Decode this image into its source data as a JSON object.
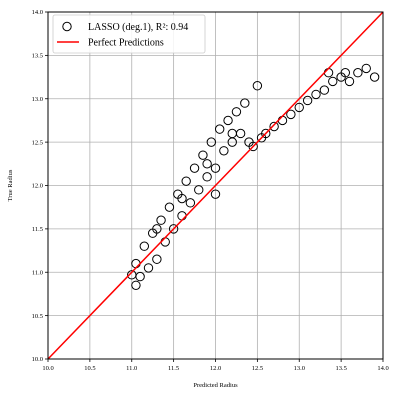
{
  "chart_data": {
    "type": "scatter",
    "xlabel": "Predicted Radius",
    "ylabel": "True Radius",
    "xlim": [
      10.0,
      14.0
    ],
    "ylim": [
      10.0,
      14.0
    ],
    "xticks": [
      "10.0",
      "10.5",
      "11.0",
      "11.5",
      "12.0",
      "12.5",
      "13.0",
      "13.5",
      "14.0"
    ],
    "yticks": [
      "10.0",
      "10.5",
      "11.0",
      "11.5",
      "12.0",
      "12.5",
      "13.0",
      "13.5",
      "14.0"
    ],
    "grid": true,
    "legend_position": "top-left",
    "series": [
      {
        "name": "LASSO (deg.1), R²: 0.94",
        "kind": "scatter",
        "marker": "open-circle",
        "color": "#000000",
        "points": [
          [
            11.0,
            10.97
          ],
          [
            11.05,
            10.85
          ],
          [
            11.1,
            10.95
          ],
          [
            11.2,
            11.05
          ],
          [
            11.15,
            11.3
          ],
          [
            11.25,
            11.45
          ],
          [
            11.3,
            11.15
          ],
          [
            11.35,
            11.6
          ],
          [
            11.4,
            11.35
          ],
          [
            11.45,
            11.75
          ],
          [
            11.5,
            11.5
          ],
          [
            11.55,
            11.9
          ],
          [
            11.6,
            11.65
          ],
          [
            11.65,
            12.05
          ],
          [
            11.7,
            11.8
          ],
          [
            11.75,
            12.2
          ],
          [
            11.8,
            11.95
          ],
          [
            11.85,
            12.35
          ],
          [
            11.9,
            12.1
          ],
          [
            11.95,
            12.5
          ],
          [
            12.0,
            12.2
          ],
          [
            12.05,
            12.65
          ],
          [
            12.1,
            12.4
          ],
          [
            12.15,
            12.75
          ],
          [
            12.2,
            12.5
          ],
          [
            12.25,
            12.85
          ],
          [
            12.3,
            12.6
          ],
          [
            12.35,
            12.95
          ],
          [
            12.4,
            12.5
          ],
          [
            12.5,
            13.15
          ],
          [
            12.45,
            12.45
          ],
          [
            12.55,
            12.55
          ],
          [
            12.6,
            12.6
          ],
          [
            12.7,
            12.68
          ],
          [
            12.8,
            12.75
          ],
          [
            12.9,
            12.82
          ],
          [
            13.0,
            12.9
          ],
          [
            13.1,
            12.98
          ],
          [
            13.2,
            13.05
          ],
          [
            13.3,
            13.1
          ],
          [
            13.4,
            13.2
          ],
          [
            13.5,
            13.25
          ],
          [
            13.6,
            13.2
          ],
          [
            13.7,
            13.3
          ],
          [
            13.8,
            13.35
          ],
          [
            13.9,
            13.25
          ],
          [
            13.35,
            13.3
          ],
          [
            13.55,
            13.3
          ],
          [
            11.05,
            11.1
          ],
          [
            11.3,
            11.5
          ],
          [
            11.6,
            11.85
          ],
          [
            11.9,
            12.25
          ],
          [
            12.2,
            12.6
          ],
          [
            12.0,
            11.9
          ]
        ]
      },
      {
        "name": "Perfect Predictions",
        "kind": "line",
        "color": "#ff0000",
        "points": [
          [
            10.0,
            10.0
          ],
          [
            14.0,
            14.0
          ]
        ]
      }
    ]
  }
}
